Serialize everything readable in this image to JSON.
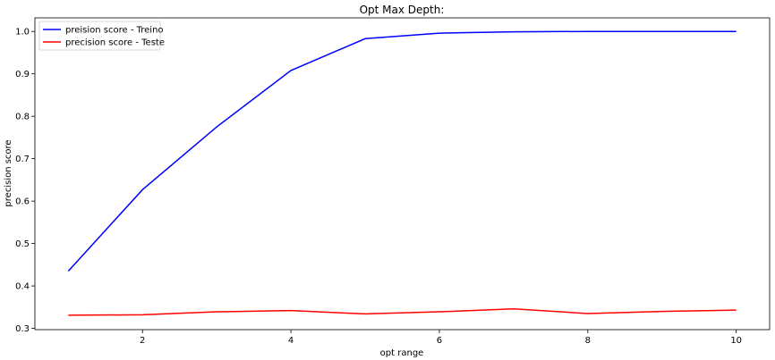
{
  "chart_data": {
    "type": "line",
    "title": "Opt Max Depth:",
    "xlabel": "opt range",
    "ylabel": "precision score",
    "x": [
      1,
      2,
      3,
      4,
      5,
      6,
      7,
      8,
      9,
      10
    ],
    "xlim": [
      0.55,
      10.45
    ],
    "ylim": [
      0.297,
      1.032
    ],
    "xticks": [
      2,
      4,
      6,
      8,
      10
    ],
    "yticks": [
      0.3,
      0.4,
      0.5,
      0.6,
      0.7,
      0.8,
      0.9,
      1.0
    ],
    "ytick_labels": [
      "0.3",
      "0.4",
      "0.5",
      "0.6",
      "0.7",
      "0.8",
      "0.9",
      "1.0"
    ],
    "grid": false,
    "legend_position": "upper-left",
    "series": [
      {
        "name": "preision score - Treino",
        "color": "#0000ff",
        "values": [
          0.435,
          0.627,
          0.775,
          0.908,
          0.983,
          0.996,
          0.999,
          1.0,
          1.0,
          1.0
        ]
      },
      {
        "name": "precision score - Teste",
        "color": "#ff0000",
        "values": [
          0.331,
          0.332,
          0.339,
          0.342,
          0.334,
          0.339,
          0.346,
          0.335,
          0.34,
          0.343
        ]
      }
    ]
  }
}
